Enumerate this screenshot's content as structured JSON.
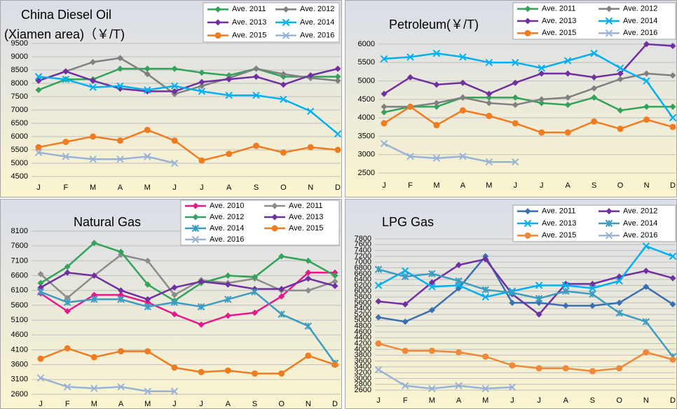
{
  "chart_data": [
    {
      "type": "line",
      "title": "China Diesel Oil",
      "subtitle": "(Xiamen area)（￥/T)",
      "categories": [
        "J",
        "F",
        "M",
        "A",
        "M",
        "J",
        "J",
        "A",
        "S",
        "O",
        "N",
        "D"
      ],
      "ylim": [
        4500,
        9500
      ],
      "yticks": [
        4500,
        5000,
        5500,
        6000,
        6500,
        7000,
        7500,
        8000,
        8500,
        9000,
        9500
      ],
      "grid": true,
      "series": [
        {
          "name": "Ave. 2011",
          "color": "#33a35a",
          "marker": "diamond",
          "values": [
            7750,
            8150,
            8150,
            8550,
            8550,
            8550,
            8400,
            8300,
            8550,
            8250,
            8250,
            8250
          ]
        },
        {
          "name": "Ave. 2012",
          "color": "#808080",
          "marker": "diamond",
          "values": [
            8100,
            8450,
            8800,
            8950,
            8350,
            7600,
            7900,
            8200,
            8550,
            8350,
            8200,
            8100
          ]
        },
        {
          "name": "Ave. 2013",
          "color": "#7030a0",
          "marker": "diamond",
          "values": [
            8100,
            8450,
            8100,
            7800,
            7700,
            7700,
            8050,
            8150,
            8250,
            7950,
            8300,
            8550
          ]
        },
        {
          "name": "Ave. 2014",
          "color": "#00b0f0",
          "marker": "x",
          "values": [
            8250,
            8150,
            7850,
            7900,
            7750,
            7900,
            7700,
            7550,
            7550,
            7400,
            6950,
            6100
          ]
        },
        {
          "name": "Ave. 2015",
          "color": "#f07c22",
          "marker": "circle",
          "values": [
            5600,
            5800,
            6000,
            5850,
            6250,
            5850,
            5100,
            5350,
            5650,
            5400,
            5600,
            5500
          ]
        },
        {
          "name": "Ave. 2016",
          "color": "#9ab3d5",
          "marker": "x",
          "values": [
            5400,
            5250,
            5150,
            5150,
            5250,
            5000,
            null,
            null,
            null,
            null,
            null,
            null
          ]
        }
      ]
    },
    {
      "type": "line",
      "title": "Petroleum(￥/T)",
      "categories": [
        "J",
        "F",
        "M",
        "A",
        "M",
        "J",
        "J",
        "A",
        "S",
        "O",
        "N",
        "D"
      ],
      "ylim": [
        2500,
        6000
      ],
      "yticks": [
        2500,
        3000,
        3500,
        4000,
        4500,
        5000,
        5500,
        6000
      ],
      "grid": true,
      "series": [
        {
          "name": "Ave. 2011",
          "color": "#33a35a",
          "marker": "diamond",
          "values": [
            4150,
            4300,
            4300,
            4550,
            4550,
            4550,
            4400,
            4350,
            4550,
            4200,
            4300,
            4300
          ]
        },
        {
          "name": "Ave. 2012",
          "color": "#808080",
          "marker": "diamond",
          "values": [
            4300,
            4300,
            4400,
            4550,
            4400,
            4350,
            4500,
            4550,
            4800,
            5050,
            5200,
            5150
          ]
        },
        {
          "name": "Ave. 2013",
          "color": "#7030a0",
          "marker": "diamond",
          "values": [
            4650,
            5100,
            4900,
            4950,
            4650,
            4950,
            5200,
            5200,
            5100,
            5200,
            6000,
            5950
          ]
        },
        {
          "name": "Ave. 2014",
          "color": "#00b0f0",
          "marker": "x",
          "values": [
            5600,
            5650,
            5750,
            5650,
            5500,
            5500,
            5350,
            5550,
            5750,
            5350,
            5000,
            4000
          ]
        },
        {
          "name": "Ave. 2015",
          "color": "#f07c22",
          "marker": "circle",
          "values": [
            3850,
            4300,
            3800,
            4200,
            4050,
            3850,
            3600,
            3600,
            3900,
            3700,
            3950,
            3750
          ]
        },
        {
          "name": "Ave. 2016",
          "color": "#9ab3d5",
          "marker": "x",
          "values": [
            3300,
            2950,
            2900,
            2950,
            2800,
            2800,
            null,
            null,
            null,
            null,
            null,
            null
          ]
        }
      ]
    },
    {
      "type": "line",
      "title": "Natural Gas",
      "categories": [
        "J",
        "F",
        "M",
        "A",
        "M",
        "J",
        "J",
        "A",
        "S",
        "O",
        "N",
        "D"
      ],
      "ylim": [
        2600,
        8100
      ],
      "yticks": [
        2600,
        3100,
        3600,
        4100,
        4600,
        5100,
        5600,
        6100,
        6600,
        7100,
        7600,
        8100
      ],
      "grid": true,
      "series": [
        {
          "name": "Ave. 2010",
          "color": "#e6198a",
          "marker": "diamond",
          "values": [
            6000,
            5400,
            5950,
            5950,
            5700,
            5300,
            4950,
            5250,
            5350,
            5900,
            6700,
            6700
          ]
        },
        {
          "name": "Ave. 2011",
          "color": "#8c8c8c",
          "marker": "diamond",
          "values": [
            6650,
            5850,
            6600,
            7300,
            7100,
            5950,
            6450,
            6350,
            6500,
            6100,
            6100,
            6400
          ]
        },
        {
          "name": "Ave. 2012",
          "color": "#33a35a",
          "marker": "diamond",
          "values": [
            6350,
            6900,
            7700,
            7400,
            6300,
            5750,
            6350,
            6600,
            6550,
            7250,
            7100,
            6600
          ]
        },
        {
          "name": "Ave. 2013",
          "color": "#7030a0",
          "marker": "diamond",
          "values": [
            6200,
            6700,
            6600,
            6100,
            5800,
            6200,
            6400,
            6300,
            6150,
            6150,
            6500,
            6250
          ]
        },
        {
          "name": "Ave. 2014",
          "color": "#3d9cc0",
          "marker": "star",
          "values": [
            6050,
            5700,
            5800,
            5800,
            5550,
            5700,
            5550,
            5800,
            6050,
            5300,
            4900,
            3650
          ]
        },
        {
          "name": "Ave. 2015",
          "color": "#f07c22",
          "marker": "circle",
          "values": [
            3800,
            4150,
            3850,
            4050,
            4050,
            3500,
            3350,
            3400,
            3300,
            3300,
            3900,
            3600
          ]
        },
        {
          "name": "Ave. 2016",
          "color": "#9ab3d5",
          "marker": "x",
          "values": [
            3150,
            2850,
            2800,
            2850,
            2700,
            2700,
            null,
            null,
            null,
            null,
            null,
            null
          ]
        }
      ]
    },
    {
      "type": "line",
      "title": "LPG Gas",
      "categories": [
        "J",
        "F",
        "M",
        "A",
        "M",
        "J",
        "J",
        "A",
        "S",
        "O",
        "N",
        "D"
      ],
      "ylim": [
        2600,
        7800
      ],
      "yticks": [
        2600,
        2800,
        3000,
        3200,
        3400,
        3600,
        3800,
        4000,
        4200,
        4400,
        4600,
        4800,
        5000,
        5200,
        5400,
        5600,
        5800,
        6000,
        6200,
        6400,
        6600,
        6800,
        7000,
        7200,
        7400,
        7600,
        7800
      ],
      "grid": true,
      "series": [
        {
          "name": "Ave. 2011",
          "color": "#3a6fb0",
          "marker": "diamond",
          "values": [
            5100,
            4950,
            5350,
            6100,
            7200,
            5600,
            5600,
            5500,
            5500,
            5600,
            6150,
            5550
          ]
        },
        {
          "name": "Ave. 2012",
          "color": "#7030a0",
          "marker": "diamond",
          "values": [
            5650,
            5550,
            6300,
            6900,
            7100,
            5900,
            5200,
            6250,
            6250,
            6500,
            6700,
            6450
          ]
        },
        {
          "name": "Ave. 2013",
          "color": "#00b0f0",
          "marker": "x",
          "values": [
            6200,
            6700,
            6150,
            6200,
            5800,
            6000,
            6200,
            6200,
            6100,
            6350,
            7550,
            7200
          ]
        },
        {
          "name": "Ave. 2014",
          "color": "#3d9cc0",
          "marker": "star",
          "values": [
            6750,
            6500,
            6600,
            6350,
            6050,
            5950,
            5750,
            6000,
            5900,
            5250,
            4950,
            3750
          ]
        },
        {
          "name": "Ave. 2015",
          "color": "#f0883a",
          "marker": "circle",
          "values": [
            4200,
            3950,
            3950,
            3900,
            3750,
            3450,
            3350,
            3350,
            3250,
            3350,
            3900,
            3650
          ]
        },
        {
          "name": "Ave. 2016",
          "color": "#9ab3d5",
          "marker": "x",
          "values": [
            3300,
            2750,
            2650,
            2750,
            2650,
            2700,
            null,
            null,
            null,
            null,
            null,
            null
          ]
        }
      ]
    }
  ]
}
